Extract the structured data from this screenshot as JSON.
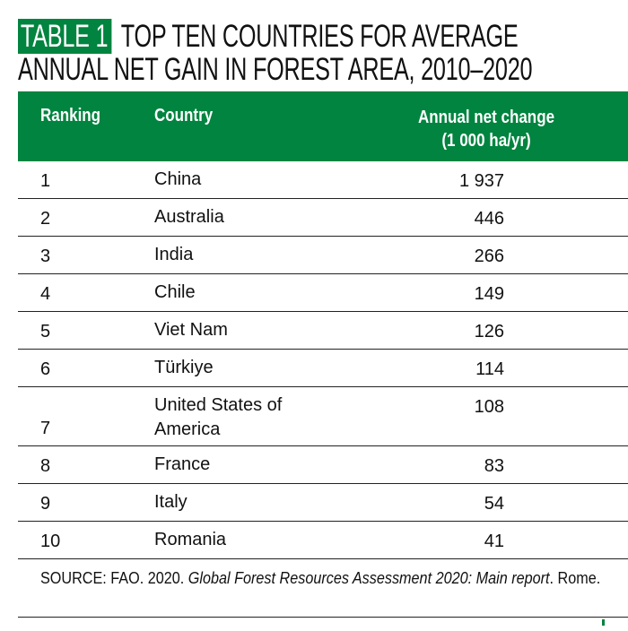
{
  "title": {
    "tag": "TABLE 1",
    "line1": "TOP TEN COUNTRIES FOR AVERAGE",
    "line2": "ANNUAL NET GAIN IN FOREST AREA, 2010–2020"
  },
  "columns": {
    "ranking": "Ranking",
    "country": "Country",
    "value_line1": "Annual net change",
    "value_line2": "(1 000 ha/yr)"
  },
  "rows": [
    {
      "rank": "1",
      "country": "China",
      "value": "1 937"
    },
    {
      "rank": "2",
      "country": "Australia",
      "value": "446"
    },
    {
      "rank": "3",
      "country": "India",
      "value": "266"
    },
    {
      "rank": "4",
      "country": "Chile",
      "value": "149"
    },
    {
      "rank": "5",
      "country": "Viet Nam",
      "value": "126"
    },
    {
      "rank": "6",
      "country": "Türkiye",
      "value": "114"
    },
    {
      "rank": "7",
      "country": "United States of America",
      "value": "108"
    },
    {
      "rank": "8",
      "country": "France",
      "value": "83"
    },
    {
      "rank": "9",
      "country": "Italy",
      "value": "54"
    },
    {
      "rank": "10",
      "country": "Romania",
      "value": "41"
    }
  ],
  "source": {
    "prefix": "SOURCE: FAO. 2020. ",
    "italic": "Global Forest Resources Assessment 2020: Main report",
    "suffix": ". Rome."
  },
  "colors": {
    "accent": "#00843f"
  }
}
